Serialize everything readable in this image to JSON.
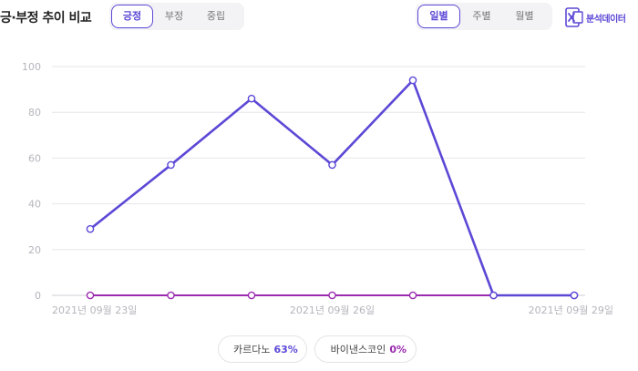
{
  "header": {
    "title": "긍·부정 추이 비교",
    "sentiment_tabs": [
      {
        "label": "긍정",
        "active": true
      },
      {
        "label": "부정",
        "active": false
      },
      {
        "label": "중립",
        "active": false
      }
    ],
    "period_tabs": [
      {
        "label": "일별",
        "active": true
      },
      {
        "label": "주별",
        "active": false
      },
      {
        "label": "월별",
        "active": false
      }
    ],
    "export_label": "분석데이터",
    "export_icon": "excel-icon"
  },
  "colors": {
    "accent": "#5b48d6",
    "series_0": "#5b48d6",
    "series_1": "#9b2ab0",
    "grid": "#e6e6ea",
    "tick": "#b5b5bd"
  },
  "legend": [
    {
      "name": "카르다노",
      "percent": "63%"
    },
    {
      "name": "바이낸스코인",
      "percent": "0%"
    }
  ],
  "chart_data": {
    "type": "line",
    "x": [
      "2021년 09월 23일",
      "2021년 09월 24일",
      "2021년 09월 25일",
      "2021년 09월 26일",
      "2021년 09월 27일",
      "2021년 09월 28일",
      "2021년 09월 29일"
    ],
    "x_tick_labels": [
      "2021년 09월 23일",
      "2021년 09월 26일",
      "2021년 09월 29일"
    ],
    "series": [
      {
        "name": "카르다노",
        "values": [
          29,
          57,
          86,
          57,
          94,
          0,
          0
        ]
      },
      {
        "name": "바이낸스코인",
        "values": [
          0,
          0,
          0,
          0,
          0,
          0,
          0
        ]
      }
    ],
    "y_ticks": [
      0,
      20,
      40,
      60,
      80,
      100
    ],
    "ylim": [
      0,
      100
    ],
    "grid": true,
    "legend_position": "bottom-center"
  }
}
